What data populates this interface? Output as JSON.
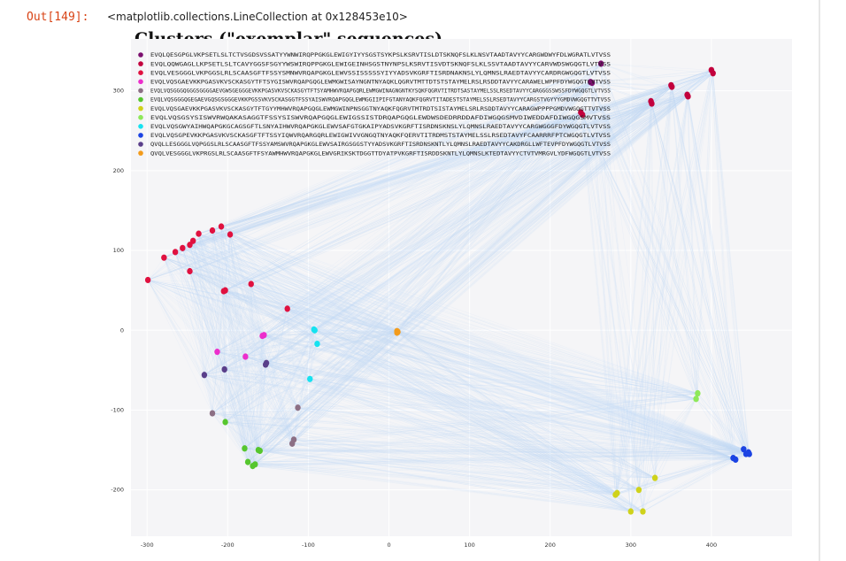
{
  "output": {
    "prompt": "Out[149]:",
    "text": "<matplotlib.collections.LineCollection at 0x128453e10>"
  },
  "chart_data": {
    "type": "scatter",
    "title": "Clusters (\"exemplar\" sequences)",
    "xlabel": "",
    "ylabel": "",
    "xlim": [
      -320,
      500
    ],
    "ylim": [
      -258,
      365
    ],
    "grid": true,
    "legend_position": "top-left",
    "edges": "light blue line collection connecting points",
    "xticks": [
      -300,
      -200,
      -100,
      0,
      100,
      200,
      300,
      400
    ],
    "yticks": [
      300,
      200,
      100,
      0,
      -100,
      -200
    ],
    "xtick_labels": [
      "-300",
      "-200",
      "-100",
      "0",
      "100",
      "200",
      "300",
      "400"
    ],
    "ytick_labels": [
      "300",
      "200",
      "100",
      "0",
      "-100",
      "-200"
    ],
    "series": [
      {
        "name": "EVQLQESGPGLVKPSETLSLTCTVSGDSVSSATYYWNWIRQPPGKGLEWIGYIYYSGSTSYKPSLKSRVTISLDTSKNQFSLKLNSVTAADTAVYYCARGWDWYFDLWGRATLVTVSS",
        "color": "#7b0f6e",
        "points": [
          [
            263,
            334
          ],
          [
            250,
            311
          ],
          [
            252,
            310
          ]
        ]
      },
      {
        "name": "EVQLQQWGAGLLKPSETLSLTCAVYGGSFSGYYWSWIRQPPGKGLEWIGEINHSGSTNYNPSLKSRVTISVDTSKNQFSLKLSSVTAADTAVYYCARVWDSWGQGTLVTVSS",
        "color": "#c2003d",
        "points": [
          [
            400,
            326
          ],
          [
            402,
            322
          ],
          [
            350,
            307
          ],
          [
            351,
            305
          ],
          [
            370,
            295
          ],
          [
            371,
            293
          ],
          [
            325,
            287
          ],
          [
            326,
            284
          ],
          [
            238,
            273
          ],
          [
            240,
            270
          ]
        ]
      },
      {
        "name": "EVQLVESGGGLVKPGGSLRLSCAASGFTFSSYSMNWVRQAPGKGLEWVSSISSSSSYIYYADSVKGRFTISRDNAKNSLYLQMNSLRAEDTAVYYCARDRGWGQGTLVTVSS",
        "color": "#e0113f",
        "points": [
          [
            -208,
            130
          ],
          [
            -219,
            125
          ],
          [
            -197,
            120
          ],
          [
            -236,
            121
          ],
          [
            -243,
            112
          ],
          [
            -247,
            107
          ],
          [
            -256,
            103
          ],
          [
            -265,
            98
          ],
          [
            -279,
            91
          ],
          [
            -247,
            74
          ],
          [
            -299,
            63
          ],
          [
            -203,
            50
          ],
          [
            -205,
            49
          ],
          [
            -171,
            58
          ],
          [
            -126,
            27
          ]
        ]
      },
      {
        "name": "EVQLVQSGAEVKKPGASVKVSCKASGYTFTSYGISWVRQAPGQGLEWMGWISAYNGNTNYAQKLQGRVTMTTDTSTSTAYMELRSLRSDDTAVYYCARAWELWPPFDYWGQGTLVTVSS",
        "color": "#ec2ecc",
        "points": [
          [
            -155,
            -6
          ],
          [
            -157,
            -7
          ],
          [
            -213,
            -27
          ],
          [
            -178,
            -33
          ]
        ]
      },
      {
        "name": "EVQLVQSGGGQGGGSGGGGAEVGWSGEGGGEVKKPGASVKVSCKASGYTFTSYAMHWVRQAPGQRLEWMGWINAGNGNTKYSQKFQGRVTITRDTSASTAYMELSSLRSEDTAVYYCARGGGSSWSSFDYWGQGTLVTVSS",
        "color": "#8c6f84",
        "points": [
          [
            -113,
            -97
          ],
          [
            -219,
            -104
          ],
          [
            -118,
            -137
          ],
          [
            -120,
            -142
          ]
        ]
      },
      {
        "name": "EVQLVQSGGGQGEGAEVGQSGSGGGEVKKPGSSVKVSCKASGGTFSSYAISWVRQAPGQGLEWMGGIIPIFGTANYAQKFQGRVTITADESTSTAYMELSSLRSEDTAVYYCARGSTVGYYYGMDVWGQGTTVTVSS",
        "color": "#56c62e",
        "points": [
          [
            -203,
            -115
          ],
          [
            -179,
            -148
          ],
          [
            -162,
            -150
          ],
          [
            -160,
            -151
          ],
          [
            -175,
            -165
          ],
          [
            -169,
            -170
          ],
          [
            -166,
            -168
          ]
        ]
      },
      {
        "name": "EVQLVQSGAEVKKPGASVKVSCKASGYTFTGYYMHWVRQAPGQGLEWMGWINPNSGGTNYAQKFQGRVTMTRDTSISTAYMELSRLRSDDTAVYYCARAGWPPPPGMDVWGQGTTVTVSS",
        "color": "#cfd21b",
        "points": [
          [
            330,
            -185
          ],
          [
            310,
            -200
          ],
          [
            283,
            -204
          ],
          [
            281,
            -206
          ],
          [
            300,
            -227
          ],
          [
            315,
            -227
          ]
        ]
      },
      {
        "name": "EVQLVQSGSYSISWVRWQAKASAGGTFSSYSISWVRQAPGQGLEWIGSSISTDRQAPGQGLEWDWSDEDRRDDAFDIWGQGSMVDIWEDDAFDIWGQGSMVTVSS",
        "color": "#8ee85a",
        "points": [
          [
            383,
            -79
          ],
          [
            381,
            -86
          ]
        ]
      },
      {
        "name": "EVQLVQSGWYAIHWQAPGKGCAGSGFTLSNYAIHWVRQAPGKGLEWVSAFGTGKAIPYADSVKGRFTISRDNSKNSLYLQMNSLRAEDTAVYYCARGWGGGFDYWGQGTLVTVSS",
        "color": "#16e2f0",
        "points": [
          [
            -93,
            1
          ],
          [
            -92,
            0
          ],
          [
            -89,
            -17
          ],
          [
            -98,
            -61
          ]
        ]
      },
      {
        "name": "EVQLVQSGPEVKKPGASVKVSCKASGFTFTSSYIQWVRQARGQRLEWIGWIVVGNGQTNYAQKFQERVTITRDMSTSTAYMELSSLRSEDTAVYFCAARRRFPTCWGQGTLVTVSS",
        "color": "#1b43e3",
        "points": [
          [
            440,
            -149
          ],
          [
            446,
            -153
          ],
          [
            447,
            -155
          ],
          [
            443,
            -155
          ],
          [
            427,
            -160
          ],
          [
            430,
            -162
          ]
        ]
      },
      {
        "name": "QVQLLESGGGLVQPGGSLRLSCAASGFTFSSYAMSWVRQAPGKGLEWVSAIRGSGGSTYYADSVKGRFTISRDNSKNTLYLQMNSLRAEDTAVYYCAKDRGLLWFTEVPFDYWGQGTLVTVSS",
        "color": "#5a3f8a",
        "points": [
          [
            -229,
            -56
          ],
          [
            -204,
            -49
          ],
          [
            -152,
            -41
          ],
          [
            -153,
            -43
          ]
        ]
      },
      {
        "name": "QVQLVESGGGLVKPRGSLRLSCAASGFTFSYAWMHWVRQAPGKGLEWVGRIKSKTDGGTTDYATPVKGRFTISRDDSKNTLYLQMNSLKTEDTAVYYCTVTVMRGVLYDFWGQGTLVTVSS",
        "color": "#f39b1b",
        "points": [
          [
            10,
            -1
          ],
          [
            11,
            -2
          ],
          [
            10,
            -3
          ]
        ]
      }
    ]
  }
}
